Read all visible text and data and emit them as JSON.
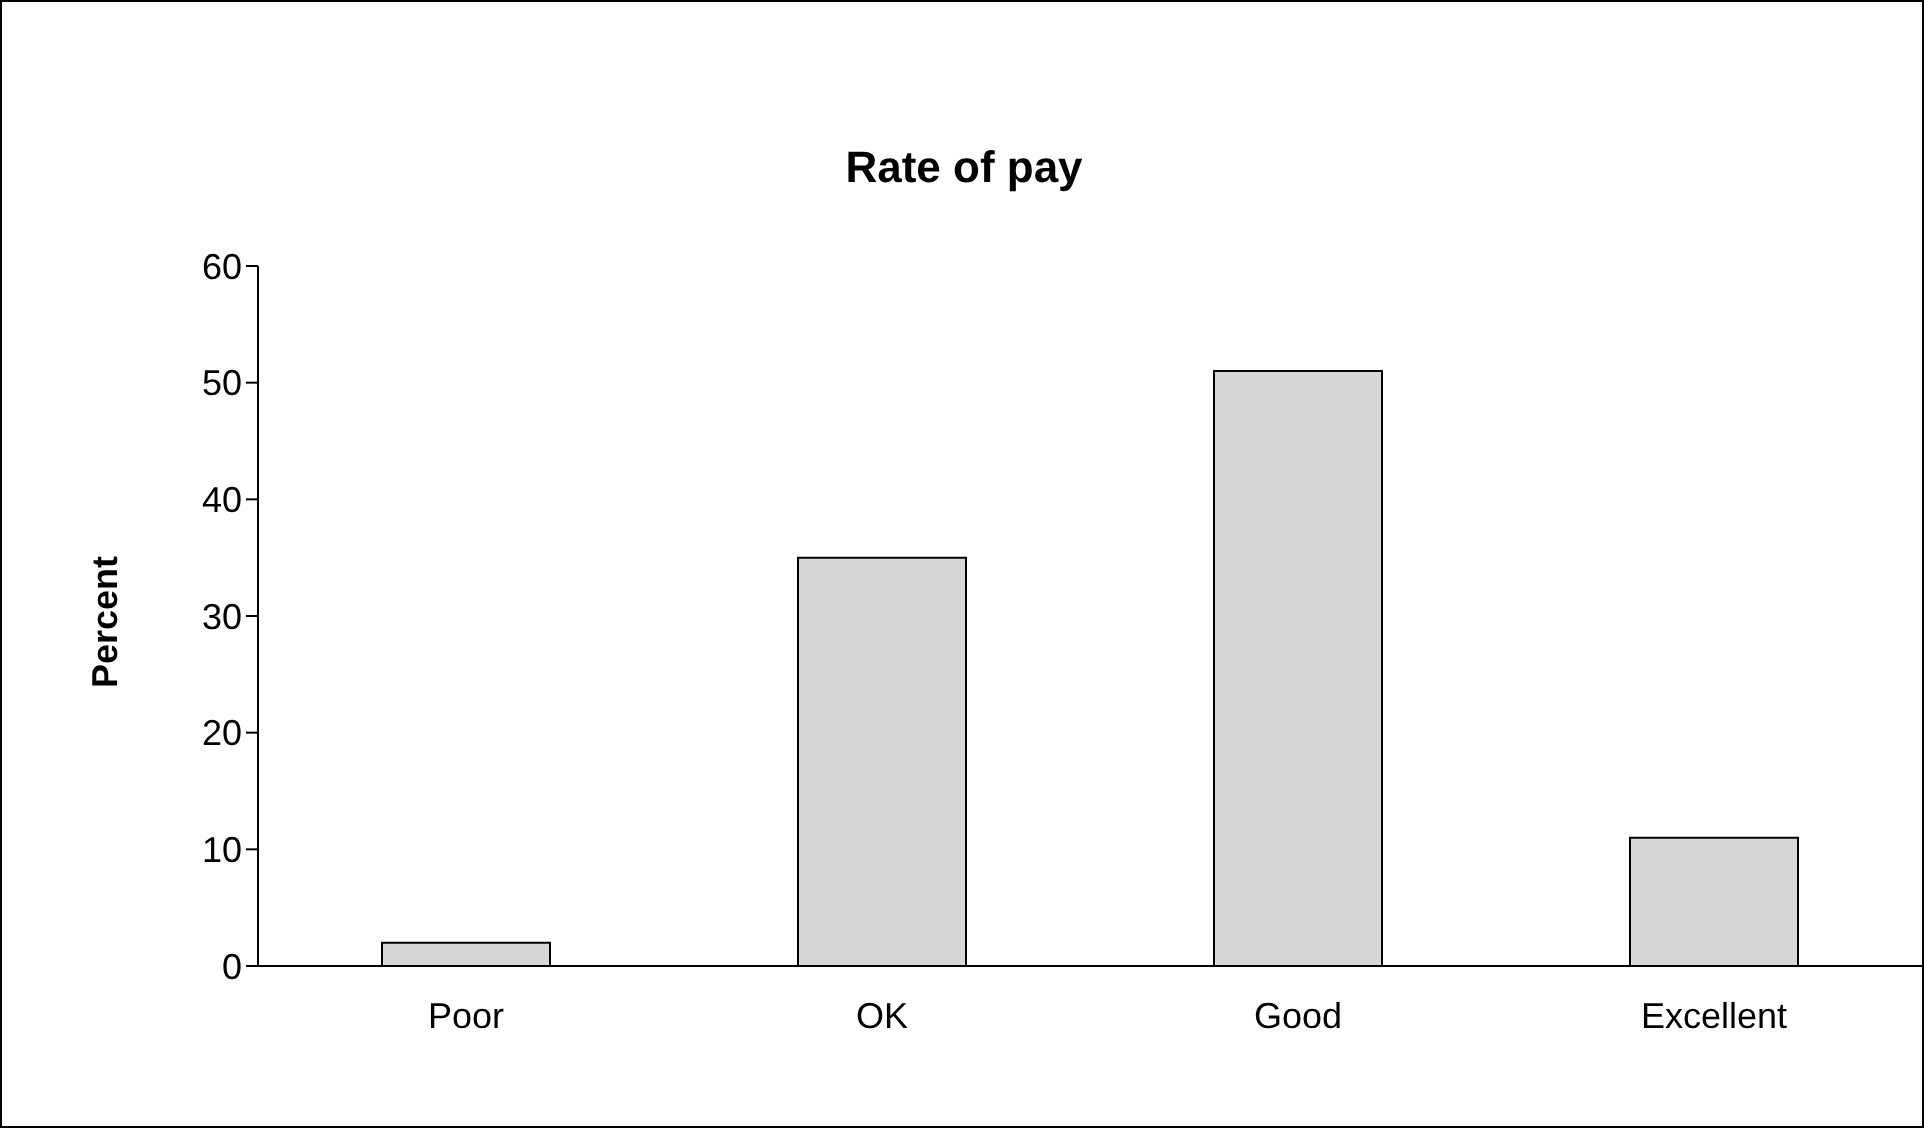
{
  "chart_data": {
    "type": "bar",
    "title": "Rate of pay",
    "ylabel": "Percent",
    "categories": [
      "Poor",
      "OK",
      "Good",
      "Excellent"
    ],
    "values": [
      2,
      35,
      51,
      11
    ],
    "color": "#d6d6d6",
    "ylim": [
      0,
      60
    ],
    "yticks": [
      0,
      10,
      20,
      30,
      40,
      50,
      60
    ],
    "grid": false,
    "legend": false
  }
}
